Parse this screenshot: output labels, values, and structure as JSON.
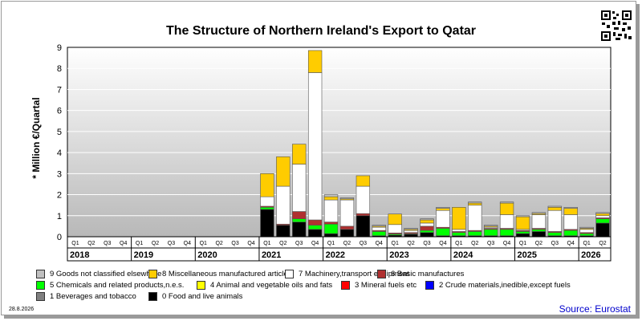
{
  "chart_data": {
    "type": "bar",
    "stacked": true,
    "title": "The Structure of Northern Ireland's Export to Qatar",
    "ylabel": "* Million €/Quartal",
    "ylim": [
      0,
      9
    ],
    "yticks": [
      "0",
      "1",
      "2",
      "3",
      "4",
      "5",
      "6",
      "7",
      "8",
      "9"
    ],
    "quarter_labels": [
      "Q1",
      "Q2",
      "Q3",
      "Q4"
    ],
    "years": [
      "2018",
      "2019",
      "2020",
      "2021",
      "2022",
      "2023",
      "2024",
      "2025",
      "2026"
    ],
    "categories": [
      "2018 Q1",
      "2018 Q2",
      "2018 Q3",
      "2018 Q4",
      "2019 Q1",
      "2019 Q2",
      "2019 Q3",
      "2019 Q4",
      "2020 Q1",
      "2020 Q2",
      "2020 Q3",
      "2020 Q4",
      "2021 Q1",
      "2021 Q2",
      "2021 Q3",
      "2021 Q4",
      "2022 Q1",
      "2022 Q2",
      "2022 Q3",
      "2022 Q4",
      "2023 Q1",
      "2023 Q2",
      "2023 Q3",
      "2023 Q4",
      "2024 Q1",
      "2024 Q2",
      "2024 Q3",
      "2024 Q4",
      "2025 Q1",
      "2025 Q2",
      "2025 Q3",
      "2025 Q4",
      "2026 Q1",
      "2026 Q2"
    ],
    "series": [
      {
        "name": "0 Food and live animals",
        "color": "#000000",
        "values": [
          0,
          0,
          0,
          0,
          0,
          0,
          0,
          0,
          0,
          0,
          0,
          0,
          1.3,
          0.55,
          0.7,
          0.35,
          0.15,
          0.35,
          1.0,
          0.05,
          0.08,
          0.12,
          0.2,
          0.05,
          0.05,
          0.05,
          0.05,
          0.05,
          0.15,
          0.25,
          0.05,
          0.05,
          0.05,
          0.65
        ]
      },
      {
        "name": "1 Beverages and tobacco",
        "color": "#808080",
        "values": [
          0,
          0,
          0,
          0,
          0,
          0,
          0,
          0,
          0,
          0,
          0,
          0,
          0,
          0,
          0,
          0,
          0,
          0,
          0,
          0,
          0,
          0,
          0,
          0,
          0,
          0,
          0,
          0,
          0,
          0,
          0,
          0,
          0,
          0
        ]
      },
      {
        "name": "2 Crude materials,inedible,except fuels",
        "color": "#0000ff",
        "values": [
          0,
          0,
          0,
          0,
          0,
          0,
          0,
          0,
          0,
          0,
          0,
          0,
          0,
          0,
          0,
          0,
          0,
          0,
          0,
          0,
          0,
          0,
          0,
          0,
          0,
          0,
          0,
          0,
          0,
          0,
          0,
          0,
          0,
          0
        ]
      },
      {
        "name": "3 Mineral fuels etc",
        "color": "#ff0000",
        "values": [
          0,
          0,
          0,
          0,
          0,
          0,
          0,
          0,
          0,
          0,
          0,
          0,
          0,
          0,
          0,
          0,
          0,
          0,
          0,
          0,
          0,
          0,
          0,
          0,
          0,
          0,
          0,
          0,
          0,
          0,
          0,
          0,
          0,
          0
        ]
      },
      {
        "name": "4 Animal and vegetable oils and fats",
        "color": "#ffff00",
        "values": [
          0,
          0,
          0,
          0,
          0,
          0,
          0,
          0,
          0,
          0,
          0,
          0,
          0,
          0,
          0,
          0,
          0,
          0,
          0,
          0,
          0,
          0,
          0,
          0,
          0,
          0,
          0,
          0,
          0,
          0,
          0,
          0,
          0,
          0
        ]
      },
      {
        "name": "5 Chemicals and related products,n.e.s.",
        "color": "#00ff00",
        "values": [
          0,
          0,
          0,
          0,
          0,
          0,
          0,
          0,
          0,
          0,
          0,
          0,
          0.1,
          0,
          0.15,
          0.2,
          0.45,
          0,
          0,
          0.2,
          0.05,
          0.03,
          0.1,
          0.35,
          0.15,
          0.2,
          0.3,
          0.3,
          0.1,
          0.1,
          0.15,
          0.25,
          0.1,
          0.2
        ]
      },
      {
        "name": "6 Basic manufactures",
        "color": "#b03030",
        "values": [
          0,
          0,
          0,
          0,
          0,
          0,
          0,
          0,
          0,
          0,
          0,
          0,
          0.05,
          0.05,
          0.35,
          0.25,
          0.1,
          0.15,
          0.1,
          0.05,
          0.05,
          0.05,
          0.2,
          0.05,
          0.05,
          0.05,
          0.05,
          0.05,
          0.05,
          0.05,
          0.05,
          0.05,
          0.05,
          0.05
        ]
      },
      {
        "name": "7 Machinery,transport equipment",
        "color": "#ffffff",
        "values": [
          0,
          0,
          0,
          0,
          0,
          0,
          0,
          0,
          0,
          0,
          0,
          0,
          0.45,
          1.8,
          2.25,
          7.0,
          1.05,
          1.25,
          1.3,
          0.15,
          0.4,
          0.1,
          0.15,
          0.8,
          0.1,
          1.2,
          0.05,
          0.65,
          0.05,
          0.65,
          1.0,
          0.7,
          0.15,
          0.1
        ]
      },
      {
        "name": "8 Miscellaneous manufactured articles",
        "color": "#ffcc00",
        "values": [
          0,
          0,
          0,
          0,
          0,
          0,
          0,
          0,
          0,
          0,
          0,
          0,
          1.1,
          1.4,
          0.95,
          1.05,
          0.15,
          0.05,
          0.5,
          0.05,
          0.5,
          0.05,
          0.15,
          0.1,
          1.05,
          0.1,
          0.05,
          0.55,
          0.6,
          0.05,
          0.15,
          0.3,
          0.05,
          0.1
        ]
      },
      {
        "name": "9 Goods not classified elsewhere",
        "color": "#c0c0c0",
        "values": [
          0,
          0,
          0,
          0,
          0,
          0,
          0,
          0,
          0,
          0,
          0,
          0,
          0,
          0,
          0,
          0,
          0.1,
          0.05,
          0,
          0.05,
          0,
          0.05,
          0.05,
          0.05,
          0,
          0.05,
          0.05,
          0.05,
          0.05,
          0.05,
          0.05,
          0.05,
          0.05,
          0.05
        ]
      }
    ]
  },
  "legend": [
    {
      "label": "9 Goods not classified elsewhere",
      "color": "#c0c0c0"
    },
    {
      "label": "8 Miscellaneous manufactured articles",
      "color": "#ffcc00"
    },
    {
      "label": "7 Machinery,transport equipment",
      "color": "#ffffff"
    },
    {
      "label": "6 Basic manufactures",
      "color": "#b03030"
    },
    {
      "label": "5 Chemicals and related products,n.e.s.",
      "color": "#00ff00"
    },
    {
      "label": "4 Animal and vegetable oils and fats",
      "color": "#ffff00"
    },
    {
      "label": "3 Mineral fuels etc",
      "color": "#ff0000"
    },
    {
      "label": "2 Crude materials,inedible,except fuels",
      "color": "#0000ff"
    },
    {
      "label": "1 Beverages and tobacco",
      "color": "#808080"
    },
    {
      "label": "0 Food and live animals",
      "color": "#000000"
    }
  ],
  "footer": {
    "date": "28.8.2026",
    "source": "Source: Eurostat"
  }
}
